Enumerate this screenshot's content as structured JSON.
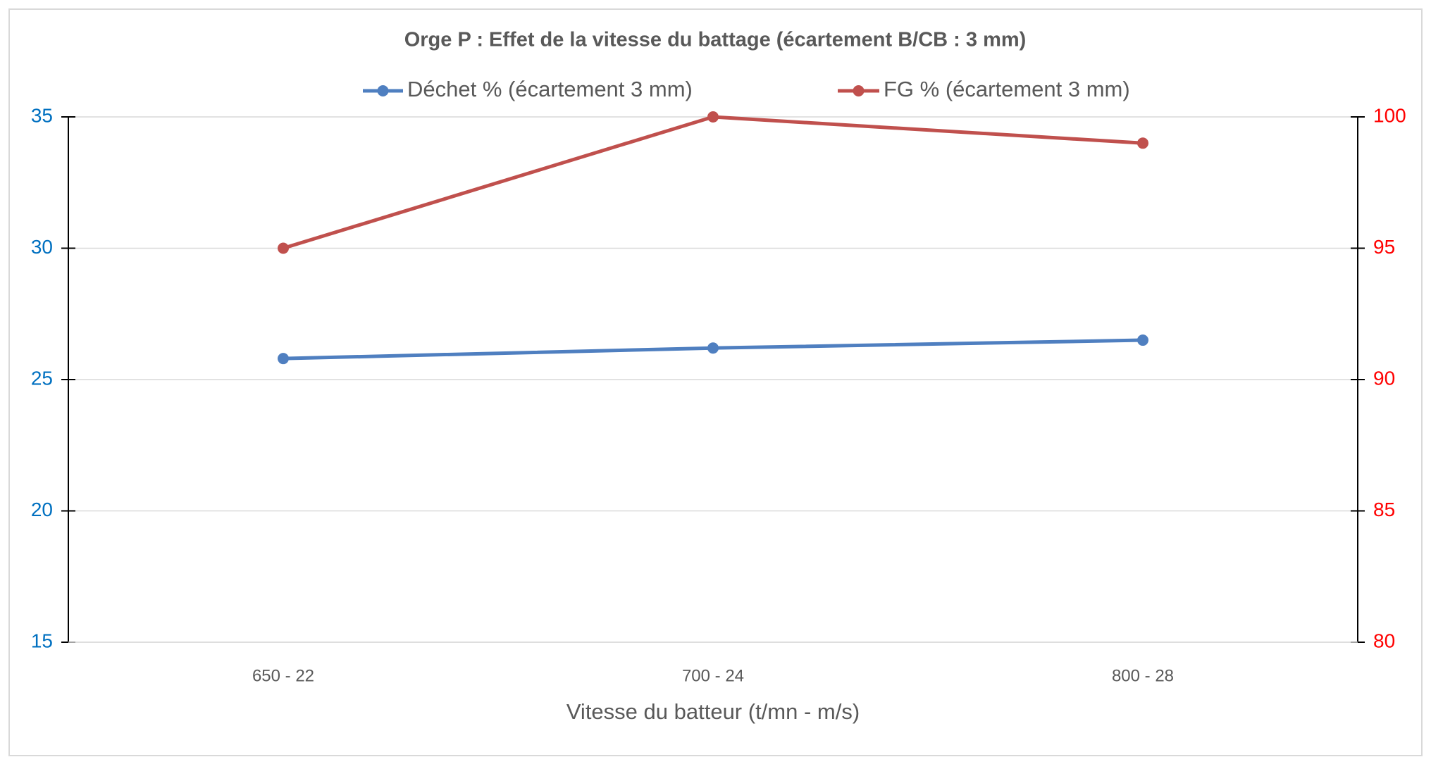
{
  "chart_data": {
    "type": "line",
    "title": "Orge P : Effet de la vitesse du battage (écartement B/CB : 3 mm)",
    "x_label": "Vitesse du batteur (t/mn - m/s)",
    "categories": [
      "650 - 22",
      "700 - 24",
      "800 - 28"
    ],
    "series": [
      {
        "name": "Déchet % (écartement 3 mm)",
        "color": "#4f7fc0",
        "values": [
          25.8,
          26.2,
          26.5
        ]
      },
      {
        "name": "FG % (écartement 3 mm)",
        "color": "#c0504d",
        "values": [
          95,
          100,
          99
        ],
        "axis": "y2"
      }
    ],
    "ylim": [
      15,
      35
    ],
    "yticks": [
      15,
      20,
      25,
      30,
      35
    ],
    "ytick_color": "#0070c0",
    "y2lim": [
      80,
      100
    ],
    "y2ticks": [
      80,
      85,
      90,
      95,
      100
    ],
    "y2tick_color": "#ff0000",
    "grid": true,
    "legend": "top"
  }
}
